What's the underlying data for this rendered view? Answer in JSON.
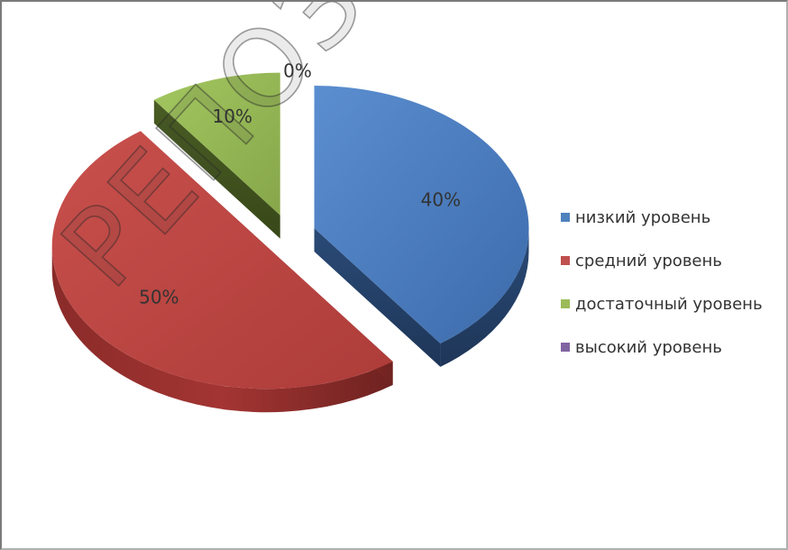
{
  "watermark": "РЕПОЗИ",
  "chart_data": {
    "type": "pie",
    "title": "",
    "categories": [
      "низкий уровень",
      "средний уровень",
      "достаточный уровень",
      "высокий уровень"
    ],
    "values": [
      40,
      50,
      10,
      0
    ],
    "value_labels": [
      "40%",
      "50%",
      "10%",
      "0%"
    ],
    "colors": [
      "#4f81bd",
      "#c0504d",
      "#9bbb59",
      "#8064a2"
    ],
    "exploded": true,
    "three_d": true,
    "legend_position": "right"
  }
}
